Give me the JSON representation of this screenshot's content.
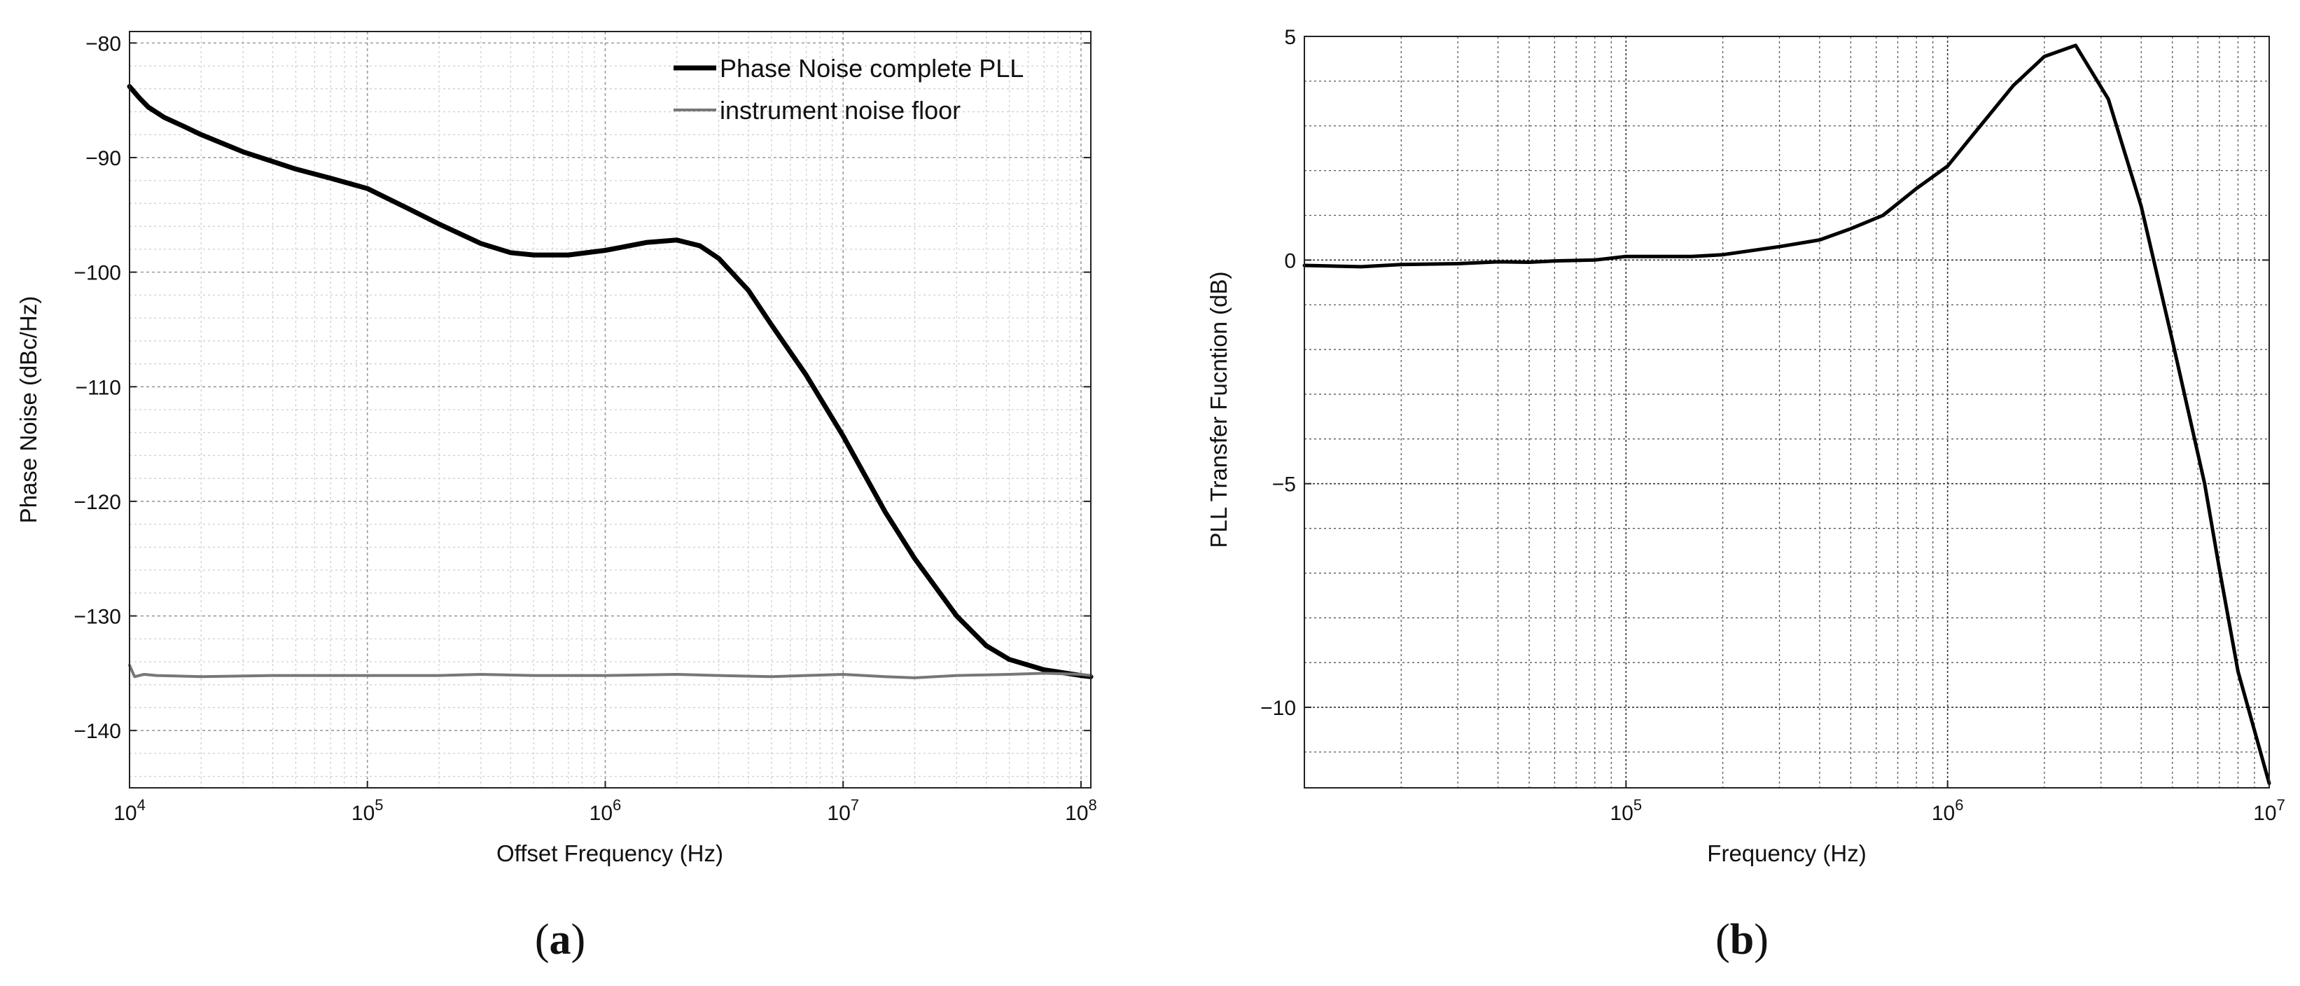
{
  "chart_data": [
    {
      "type": "line",
      "xscale": "log",
      "xlabel": "Offset Frequency (Hz)",
      "ylabel": "Phase Noise (dBc/Hz)",
      "xlim": [
        10000,
        110000000
      ],
      "ylim": [
        -145,
        -79
      ],
      "grid": true,
      "legend_position": "top-right",
      "x_tick_labels": [
        {
          "value": 10000,
          "base": "10",
          "exp": "4"
        },
        {
          "value": 100000,
          "base": "10",
          "exp": "5"
        },
        {
          "value": 1000000,
          "base": "10",
          "exp": "6"
        },
        {
          "value": 10000000,
          "base": "10",
          "exp": "7"
        },
        {
          "value": 100000000,
          "base": "10",
          "exp": "8"
        }
      ],
      "y_tick_labels": [
        {
          "value": -80,
          "label": "−80"
        },
        {
          "value": -90,
          "label": "−90"
        },
        {
          "value": -100,
          "label": "−100"
        },
        {
          "value": -110,
          "label": "−110"
        },
        {
          "value": -120,
          "label": "−120"
        },
        {
          "value": -130,
          "label": "−130"
        },
        {
          "value": -140,
          "label": "−140"
        }
      ],
      "series": [
        {
          "name": "Phase Noise complete PLL",
          "color": "#000000",
          "width": 7,
          "x": [
            10000,
            11000,
            12000,
            14000,
            17000,
            20000,
            30000,
            50000,
            70000,
            100000,
            150000,
            200000,
            300000,
            400000,
            500000,
            700000,
            1000000,
            1500000,
            2000000,
            2500000,
            3000000,
            4000000,
            5000000,
            7000000,
            10000000,
            15000000,
            20000000,
            30000000,
            40000000,
            50000000,
            70000000,
            100000000,
            110000000
          ],
          "y": [
            -83.8,
            -84.8,
            -85.6,
            -86.5,
            -87.3,
            -88.0,
            -89.5,
            -91.0,
            -91.8,
            -92.7,
            -94.5,
            -95.8,
            -97.5,
            -98.3,
            -98.5,
            -98.5,
            -98.1,
            -97.4,
            -97.2,
            -97.7,
            -98.8,
            -101.6,
            -104.6,
            -109.0,
            -114.3,
            -120.9,
            -125.0,
            -130.0,
            -132.6,
            -133.8,
            -134.7,
            -135.2,
            -135.3
          ]
        },
        {
          "name": "instrument noise floor",
          "color": "#777777",
          "width": 4,
          "x": [
            10000,
            10500,
            11500,
            13000,
            20000,
            40000,
            70000,
            100000,
            200000,
            300000,
            500000,
            1000000,
            2000000,
            3000000,
            5000000,
            7000000,
            10000000,
            15000000,
            20000000,
            30000000,
            50000000,
            70000000,
            100000000,
            110000000
          ],
          "y": [
            -134.3,
            -135.3,
            -135.1,
            -135.2,
            -135.3,
            -135.2,
            -135.2,
            -135.2,
            -135.2,
            -135.1,
            -135.2,
            -135.2,
            -135.1,
            -135.2,
            -135.3,
            -135.2,
            -135.1,
            -135.3,
            -135.4,
            -135.2,
            -135.1,
            -135.0,
            -135.1,
            -135.2
          ]
        }
      ],
      "panel_label": {
        "open": "(",
        "letter": "a",
        "close": ")"
      }
    },
    {
      "type": "line",
      "xscale": "log",
      "xlabel": "Frequency (Hz)",
      "ylabel": "PLL Transfer Fucntion (dB)",
      "xlim": [
        10000,
        10000000
      ],
      "ylim": [
        -11.8,
        5
      ],
      "grid": true,
      "x_tick_labels": [
        {
          "value": 100000,
          "base": "10",
          "exp": "5"
        },
        {
          "value": 1000000,
          "base": "10",
          "exp": "6"
        },
        {
          "value": 10000000,
          "base": "10",
          "exp": "7"
        }
      ],
      "y_tick_labels": [
        {
          "value": 5,
          "label": "5"
        },
        {
          "value": 0,
          "label": "0"
        },
        {
          "value": -5,
          "label": "−5"
        },
        {
          "value": -10,
          "label": "−10"
        }
      ],
      "series": [
        {
          "color": "#000000",
          "width": 5,
          "x": [
            10000,
            15000,
            20000,
            30000,
            40000,
            50000,
            60000,
            80000,
            100000,
            130000,
            160000,
            200000,
            300000,
            400000,
            500000,
            630000,
            800000,
            1000000,
            1200000,
            1600000,
            2000000,
            2500000,
            3160000,
            4000000,
            5000000,
            6300000,
            7000000,
            8000000,
            10000000
          ],
          "y": [
            -0.12,
            -0.15,
            -0.1,
            -0.08,
            -0.04,
            -0.05,
            -0.02,
            0.0,
            0.08,
            0.08,
            0.08,
            0.12,
            0.3,
            0.45,
            0.7,
            1.0,
            1.6,
            2.1,
            2.8,
            3.9,
            4.55,
            4.8,
            3.6,
            1.2,
            -1.8,
            -5.0,
            -6.9,
            -9.2,
            -11.7
          ]
        }
      ],
      "panel_label": {
        "open": "(",
        "letter": "b",
        "close": ")"
      }
    }
  ]
}
